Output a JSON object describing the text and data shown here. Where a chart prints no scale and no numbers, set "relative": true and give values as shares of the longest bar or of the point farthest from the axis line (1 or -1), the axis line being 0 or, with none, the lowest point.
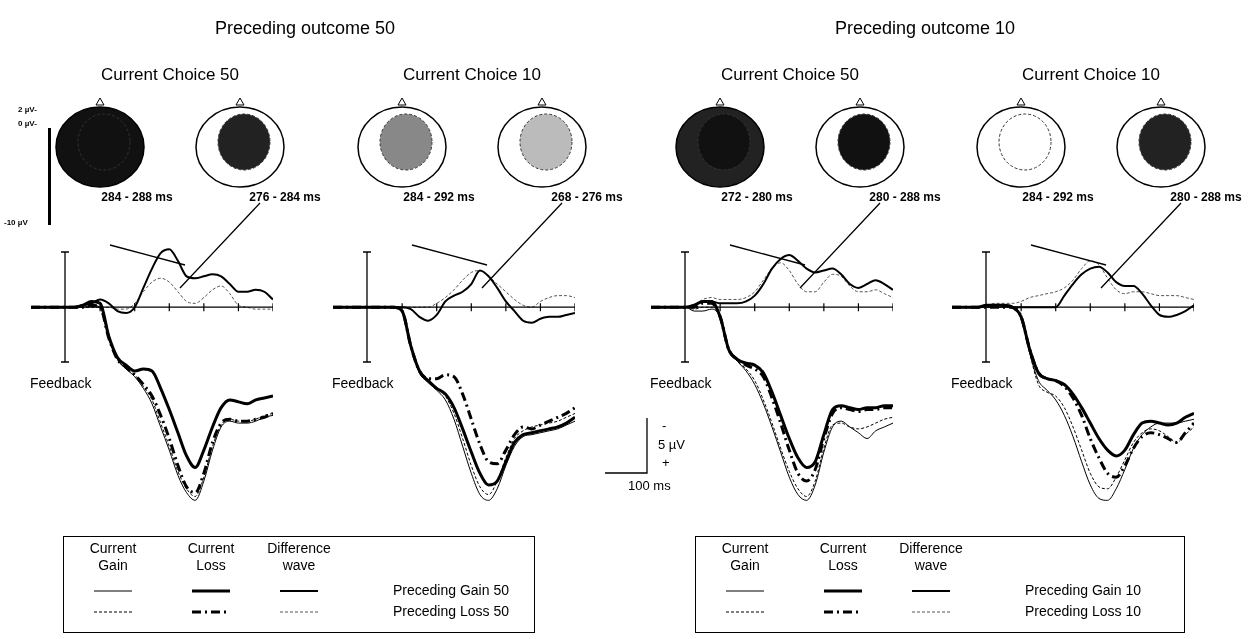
{
  "chart_data": [
    {
      "type": "line",
      "title": "Current Choice 50",
      "relative": true,
      "categories": [
        null,
        null,
        null,
        null,
        null,
        null,
        null,
        null,
        null,
        null,
        null,
        null,
        null,
        null,
        null,
        null,
        null,
        null,
        null,
        null,
        null,
        null,
        null,
        null,
        null,
        null,
        null,
        null,
        null
      ],
      "series": [
        {
          "color": "#000000",
          "line_style": "solid",
          "values": [
            0,
            0,
            0,
            0,
            0,
            0,
            0,
            0.01,
            0,
            -0.16,
            -0.27,
            -0.32,
            -0.36,
            -0.42,
            -0.5,
            -0.62,
            -0.74,
            -0.87,
            -0.96,
            -1,
            -0.9,
            -0.74,
            -0.62,
            -0.59,
            -0.6,
            -0.6,
            -0.59,
            -0.57,
            -0.56
          ]
        },
        {
          "color": "#000000",
          "line_style": "solid",
          "values": [
            0,
            0,
            0,
            0,
            0,
            0,
            0.01,
            0.03,
            0.02,
            -0.15,
            -0.26,
            -0.3,
            -0.33,
            -0.32,
            -0.33,
            -0.42,
            -0.53,
            -0.65,
            -0.77,
            -0.83,
            -0.74,
            -0.62,
            -0.52,
            -0.48,
            -0.49,
            -0.5,
            -0.48,
            -0.47,
            -0.46
          ]
        },
        {
          "color": "#000000",
          "line_style": "solid",
          "values": [
            0,
            0,
            0,
            0,
            0,
            0,
            0.01,
            0.02,
            0.04,
            0.02,
            -0.02,
            -0.03,
            0,
            0.1,
            0.2,
            0.28,
            0.3,
            0.24,
            0.16,
            0.15,
            0.16,
            0.17,
            0.16,
            0.12,
            0.08,
            0.08,
            0.09,
            0.08,
            0.04
          ]
        },
        {
          "color": "#000000",
          "line_style": "dashed",
          "values": [
            0,
            0,
            0,
            0,
            0,
            0,
            0,
            0,
            0,
            -0.16,
            -0.27,
            -0.32,
            -0.35,
            -0.41,
            -0.48,
            -0.6,
            -0.72,
            -0.85,
            -0.94,
            -0.98,
            -0.88,
            -0.72,
            -0.61,
            -0.58,
            -0.59,
            -0.59,
            -0.58,
            -0.56,
            -0.55
          ]
        },
        {
          "color": "#000000",
          "line_style": "dashed",
          "values": [
            0,
            0,
            0,
            0,
            0,
            0,
            0,
            0.01,
            0,
            -0.16,
            -0.27,
            -0.31,
            -0.35,
            -0.4,
            -0.46,
            -0.56,
            -0.68,
            -0.82,
            -0.93,
            -0.96,
            -0.86,
            -0.7,
            -0.6,
            -0.58,
            -0.59,
            -0.59,
            -0.58,
            -0.57,
            -0.55
          ]
        },
        {
          "color": "#555555",
          "line_style": "dashed",
          "values": [
            0,
            0,
            0,
            0,
            0,
            0,
            0,
            0,
            0,
            0,
            -0.01,
            -0.01,
            0.02,
            0.08,
            0.13,
            0.15,
            0.13,
            0.08,
            0.03,
            0.02,
            0.05,
            0.09,
            0.11,
            0.07,
            0.01,
            0,
            -0.01,
            -0.01,
            -0.01
          ]
        }
      ],
      "annotations": [
        "284 - 288 ms",
        "276 - 284 ms",
        "Feedback",
        "Preceding outcome 50",
        "2 µV-",
        "0 µV-",
        "-10 µV",
        "Current Gain",
        "Current Loss",
        "Difference wave",
        "Preceding Gain 50",
        "Preceding Loss 50"
      ]
    },
    {
      "type": "line",
      "title": "Current Choice 10",
      "relative": true,
      "categories": [
        null,
        null,
        null,
        null,
        null,
        null,
        null,
        null,
        null,
        null,
        null,
        null,
        null,
        null,
        null,
        null,
        null,
        null,
        null,
        null,
        null,
        null,
        null,
        null,
        null,
        null,
        null,
        null,
        null
      ],
      "series": [
        {
          "color": "#000000",
          "line_style": "solid",
          "values": [
            0,
            0,
            0,
            0,
            0,
            0,
            0,
            0,
            -0.02,
            -0.2,
            -0.34,
            -0.39,
            -0.43,
            -0.48,
            -0.58,
            -0.72,
            -0.86,
            -0.97,
            -1,
            -0.94,
            -0.82,
            -0.72,
            -0.67,
            -0.66,
            -0.65,
            -0.64,
            -0.63,
            -0.61,
            -0.59
          ]
        },
        {
          "color": "#000000",
          "line_style": "solid",
          "values": [
            0,
            0,
            0,
            0,
            0,
            0,
            0,
            0,
            -0.02,
            -0.2,
            -0.33,
            -0.38,
            -0.42,
            -0.45,
            -0.52,
            -0.63,
            -0.75,
            -0.86,
            -0.92,
            -0.9,
            -0.8,
            -0.7,
            -0.66,
            -0.65,
            -0.64,
            -0.63,
            -0.62,
            -0.6,
            -0.57
          ]
        },
        {
          "color": "#000000",
          "line_style": "solid",
          "values": [
            0,
            0,
            0,
            0,
            0,
            0,
            0,
            0,
            0,
            -0.01,
            -0.05,
            -0.07,
            -0.04,
            0.03,
            0.06,
            0.08,
            0.12,
            0.19,
            0.16,
            0.1,
            0.03,
            -0.02,
            -0.07,
            -0.08,
            -0.06,
            -0.05,
            -0.05,
            -0.04,
            -0.03
          ]
        },
        {
          "color": "#000000",
          "line_style": "dashed",
          "values": [
            0,
            0,
            0,
            0,
            0,
            0,
            0,
            0,
            -0.02,
            -0.2,
            -0.33,
            -0.38,
            -0.42,
            -0.46,
            -0.55,
            -0.68,
            -0.82,
            -0.93,
            -0.97,
            -0.9,
            -0.78,
            -0.68,
            -0.64,
            -0.62,
            -0.61,
            -0.6,
            -0.59,
            -0.57,
            -0.55
          ]
        },
        {
          "color": "#000000",
          "line_style": "dashed",
          "values": [
            0,
            0,
            0,
            0,
            0,
            0,
            0,
            0,
            -0.02,
            -0.2,
            -0.33,
            -0.37,
            -0.37,
            -0.35,
            -0.36,
            -0.45,
            -0.58,
            -0.71,
            -0.8,
            -0.81,
            -0.74,
            -0.66,
            -0.62,
            -0.63,
            -0.61,
            -0.59,
            -0.57,
            -0.55,
            -0.52
          ]
        },
        {
          "color": "#555555",
          "line_style": "dashed",
          "values": [
            0,
            0,
            0,
            0,
            0,
            0,
            0,
            0,
            0,
            0,
            0,
            0,
            0.02,
            0.05,
            0.09,
            0.14,
            0.18,
            0.19,
            0.16,
            0.12,
            0.08,
            0.04,
            0.01,
            0,
            0.03,
            0.05,
            0.06,
            0.06,
            0.05
          ]
        }
      ],
      "annotations": [
        "284 - 292 ms",
        "268 - 276 ms",
        "Feedback"
      ]
    },
    {
      "type": "line",
      "title": "Current Choice 50",
      "relative": true,
      "categories": [
        null,
        null,
        null,
        null,
        null,
        null,
        null,
        null,
        null,
        null,
        null,
        null,
        null,
        null,
        null,
        null,
        null,
        null,
        null,
        null,
        null,
        null,
        null,
        null,
        null,
        null,
        null,
        null,
        null
      ],
      "series": [
        {
          "color": "#000000",
          "line_style": "solid",
          "values": [
            0,
            0,
            0,
            0,
            0,
            -0.02,
            -0.02,
            -0.01,
            -0.05,
            -0.22,
            -0.28,
            -0.33,
            -0.4,
            -0.5,
            -0.62,
            -0.75,
            -0.88,
            -0.97,
            -1,
            -0.92,
            -0.75,
            -0.62,
            -0.59,
            -0.62,
            -0.65,
            -0.68,
            -0.64,
            -0.62,
            -0.6
          ]
        },
        {
          "color": "#000000",
          "line_style": "solid",
          "values": [
            0,
            0,
            0,
            0,
            0,
            0.01,
            0.03,
            0.03,
            -0.05,
            -0.22,
            -0.27,
            -0.29,
            -0.3,
            -0.34,
            -0.44,
            -0.56,
            -0.68,
            -0.78,
            -0.83,
            -0.8,
            -0.66,
            -0.53,
            -0.51,
            -0.52,
            -0.53,
            -0.52,
            -0.52,
            -0.51,
            -0.51
          ]
        },
        {
          "color": "#000000",
          "line_style": "solid",
          "values": [
            0,
            0,
            0,
            0,
            0,
            0.01,
            0.03,
            0.03,
            0.02,
            0.02,
            0.02,
            0.03,
            0.06,
            0.12,
            0.2,
            0.25,
            0.27,
            0.24,
            0.2,
            0.18,
            0.19,
            0.2,
            0.17,
            0.12,
            0.1,
            0.12,
            0.14,
            0.12,
            0.09
          ]
        },
        {
          "color": "#000000",
          "line_style": "dashed",
          "values": [
            0,
            0,
            0,
            0,
            0,
            -0.01,
            0,
            0,
            -0.05,
            -0.22,
            -0.28,
            -0.32,
            -0.38,
            -0.48,
            -0.6,
            -0.73,
            -0.85,
            -0.94,
            -0.98,
            -0.9,
            -0.73,
            -0.61,
            -0.6,
            -0.62,
            -0.63,
            -0.62,
            -0.6,
            -0.58,
            -0.57
          ]
        },
        {
          "color": "#000000",
          "line_style": "dashed",
          "values": [
            0,
            0,
            0,
            0,
            0,
            0,
            0.02,
            0.02,
            -0.05,
            -0.22,
            -0.27,
            -0.3,
            -0.32,
            -0.36,
            -0.47,
            -0.6,
            -0.74,
            -0.86,
            -0.9,
            -0.84,
            -0.68,
            -0.55,
            -0.52,
            -0.53,
            -0.54,
            -0.53,
            -0.53,
            -0.52,
            -0.52
          ]
        },
        {
          "color": "#555555",
          "line_style": "dashed",
          "values": [
            0,
            0,
            0,
            0,
            0,
            0.01,
            0.04,
            0.05,
            0.04,
            0.04,
            0.04,
            0.05,
            0.08,
            0.14,
            0.2,
            0.23,
            0.19,
            0.12,
            0.08,
            0.08,
            0.13,
            0.17,
            0.16,
            0.11,
            0.08,
            0.08,
            0.09,
            0.07,
            0.05
          ]
        }
      ],
      "annotations": [
        "272 - 280 ms",
        "280 - 288 ms",
        "Feedback",
        "Preceding outcome 10",
        "-",
        "5 µV",
        "+",
        "100 ms",
        "Current Gain",
        "Current Loss",
        "Difference wave",
        "Preceding Gain 10",
        "Preceding Loss 10"
      ]
    },
    {
      "type": "line",
      "title": "Current Choice 10",
      "relative": true,
      "categories": [
        null,
        null,
        null,
        null,
        null,
        null,
        null,
        null,
        null,
        null,
        null,
        null,
        null,
        null,
        null,
        null,
        null,
        null,
        null,
        null,
        null,
        null,
        null,
        null,
        null,
        null,
        null,
        null,
        null
      ],
      "series": [
        {
          "color": "#000000",
          "line_style": "solid",
          "values": [
            0,
            0,
            0,
            0,
            0,
            0,
            0,
            0,
            -0.05,
            -0.24,
            -0.38,
            -0.43,
            -0.48,
            -0.56,
            -0.67,
            -0.8,
            -0.92,
            -0.99,
            -1,
            -0.94,
            -0.84,
            -0.73,
            -0.66,
            -0.62,
            -0.6,
            -0.6,
            -0.6,
            -0.59,
            -0.58
          ]
        },
        {
          "color": "#000000",
          "line_style": "solid",
          "values": [
            0,
            0,
            0,
            0,
            0.01,
            0.01,
            0.01,
            0,
            -0.05,
            -0.22,
            -0.34,
            -0.37,
            -0.38,
            -0.4,
            -0.45,
            -0.52,
            -0.6,
            -0.68,
            -0.74,
            -0.77,
            -0.74,
            -0.66,
            -0.6,
            -0.59,
            -0.6,
            -0.61,
            -0.6,
            -0.57,
            -0.55
          ]
        },
        {
          "color": "#000000",
          "line_style": "solid",
          "values": [
            0,
            0,
            0,
            0,
            0.01,
            0.01,
            0.01,
            0,
            0,
            0,
            0,
            0,
            0,
            0.06,
            0.12,
            0.17,
            0.2,
            0.21,
            0.18,
            0.13,
            0.11,
            0.11,
            0.07,
            0.01,
            -0.04,
            -0.05,
            -0.04,
            -0.02,
            0.01
          ]
        },
        {
          "color": "#000000",
          "line_style": "dashed",
          "values": [
            0,
            0,
            0,
            0,
            0,
            0,
            0,
            0,
            -0.05,
            -0.24,
            -0.4,
            -0.44,
            -0.46,
            -0.52,
            -0.62,
            -0.74,
            -0.86,
            -0.93,
            -0.94,
            -0.88,
            -0.79,
            -0.7,
            -0.65,
            -0.63,
            -0.64,
            -0.67,
            -0.7,
            -0.66,
            -0.62
          ]
        },
        {
          "color": "#000000",
          "line_style": "dashed",
          "values": [
            0,
            0,
            0,
            0,
            0,
            0,
            0,
            0,
            -0.05,
            -0.22,
            -0.34,
            -0.37,
            -0.38,
            -0.41,
            -0.47,
            -0.56,
            -0.68,
            -0.78,
            -0.86,
            -0.88,
            -0.82,
            -0.73,
            -0.67,
            -0.65,
            -0.66,
            -0.68,
            -0.7,
            -0.65,
            -0.6
          ]
        },
        {
          "color": "#555555",
          "line_style": "dashed",
          "values": [
            0,
            0,
            0,
            0,
            0.01,
            0.02,
            0.02,
            0.02,
            0.03,
            0.05,
            0.06,
            0.07,
            0.08,
            0.1,
            0.14,
            0.2,
            0.24,
            0.22,
            0.15,
            0.09,
            0.07,
            0.08,
            0.08,
            0.07,
            0.06,
            0.06,
            0.06,
            0.05,
            0.04
          ]
        }
      ],
      "annotations": [
        "284 - 292 ms",
        "280 - 288 ms",
        "Feedback"
      ]
    }
  ]
}
